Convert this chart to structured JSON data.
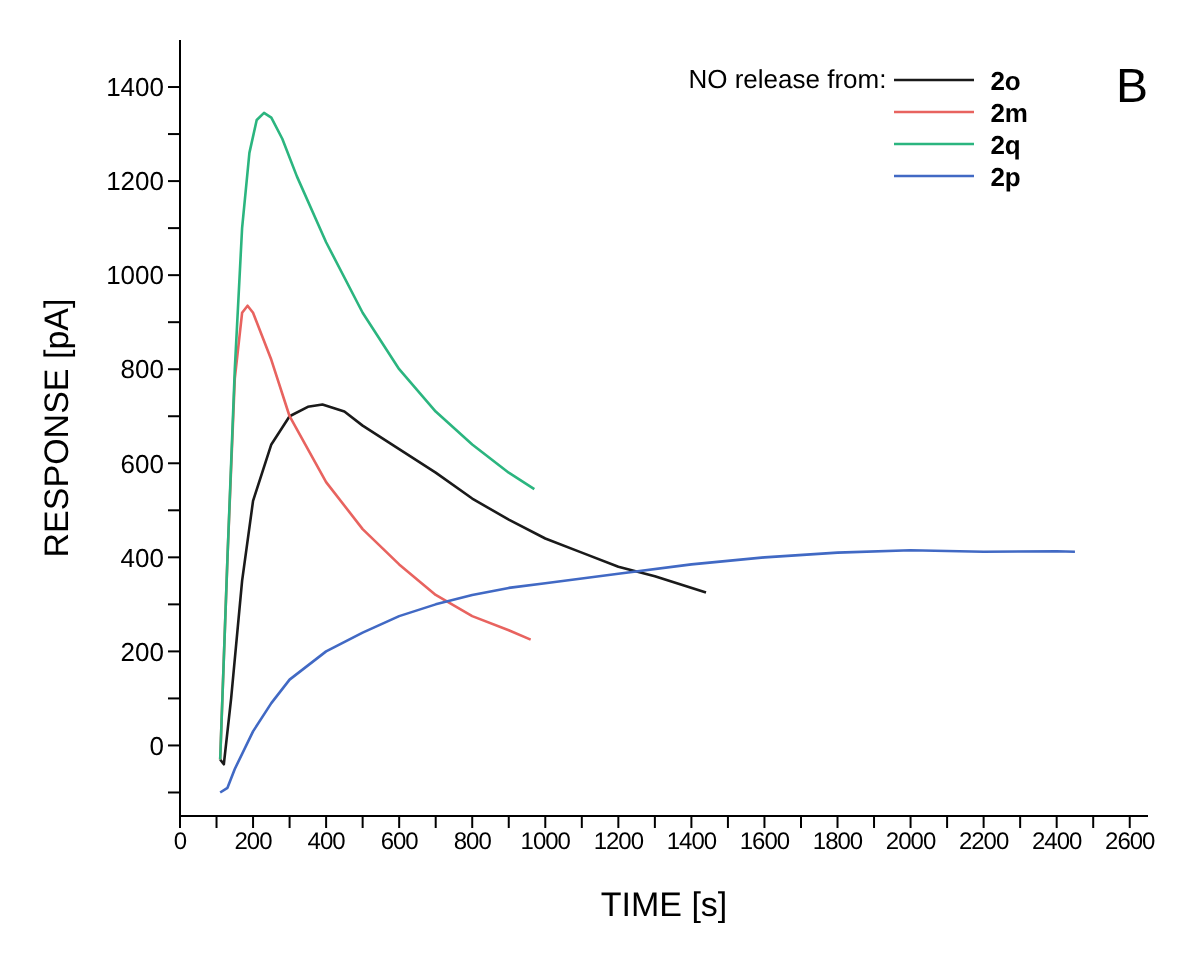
{
  "chart_data": {
    "type": "line",
    "xlabel": "TIME [s]",
    "ylabel": "RESPONSE [pA]",
    "legend_title": "NO release from:",
    "legend": "top right",
    "annotations": [
      "B"
    ],
    "grid": false,
    "marker": "none",
    "line_style": "solid",
    "xlim": [
      0,
      2650
    ],
    "ylim": [
      -150,
      1500
    ],
    "xticks": [
      0,
      {
        "value": 100,
        "label": null
      },
      200,
      {
        "value": 300,
        "label": null
      },
      400,
      {
        "value": 500,
        "label": null
      },
      600,
      {
        "value": 700,
        "label": null
      },
      800,
      {
        "value": 900,
        "label": null
      },
      1000,
      {
        "value": 1100,
        "label": null
      },
      1200,
      {
        "value": 1300,
        "label": null
      },
      1400,
      {
        "value": 1500,
        "label": null
      },
      1600,
      {
        "value": 1700,
        "label": null
      },
      1800,
      {
        "value": 1900,
        "label": null
      },
      2000,
      {
        "value": 2100,
        "label": null
      },
      2200,
      {
        "value": 2300,
        "label": null
      },
      2400,
      {
        "value": 2500,
        "label": null
      },
      2600
    ],
    "yticks": [
      {
        "value": -100,
        "label": null
      },
      0,
      {
        "value": 100,
        "label": null
      },
      200,
      {
        "value": 300,
        "label": null
      },
      400,
      {
        "value": 500,
        "label": null
      },
      600,
      {
        "value": 700,
        "label": null
      },
      800,
      {
        "value": 900,
        "label": null
      },
      1000,
      {
        "value": 1100,
        "label": null
      },
      1200,
      {
        "value": 1300,
        "label": null
      },
      1400
    ],
    "series": [
      {
        "name": "2o",
        "color": "#1a1a1a",
        "x": [
          110,
          120,
          140,
          170,
          200,
          250,
          300,
          350,
          390,
          450,
          500,
          600,
          700,
          800,
          900,
          1000,
          1100,
          1200,
          1300,
          1440
        ],
        "values": [
          -30,
          -40,
          100,
          350,
          520,
          640,
          700,
          720,
          725,
          710,
          680,
          630,
          580,
          525,
          480,
          440,
          410,
          380,
          360,
          325
        ]
      },
      {
        "name": "2m",
        "color": "#e8635f",
        "x": [
          110,
          130,
          150,
          170,
          185,
          200,
          250,
          300,
          400,
          500,
          600,
          700,
          800,
          900,
          960
        ],
        "values": [
          -30,
          400,
          780,
          920,
          935,
          920,
          820,
          700,
          560,
          460,
          385,
          320,
          275,
          245,
          225
        ]
      },
      {
        "name": "2q",
        "color": "#2bb57f",
        "x": [
          110,
          130,
          150,
          170,
          190,
          210,
          230,
          250,
          280,
          320,
          400,
          500,
          600,
          700,
          800,
          900,
          970
        ],
        "values": [
          -30,
          400,
          800,
          1100,
          1260,
          1330,
          1345,
          1335,
          1290,
          1210,
          1070,
          920,
          800,
          710,
          640,
          580,
          545
        ]
      },
      {
        "name": "2p",
        "color": "#4169c4",
        "x": [
          110,
          130,
          150,
          200,
          250,
          300,
          400,
          500,
          600,
          700,
          800,
          900,
          1000,
          1200,
          1400,
          1600,
          1800,
          2000,
          2200,
          2400,
          2450
        ],
        "values": [
          -100,
          -90,
          -50,
          30,
          90,
          140,
          200,
          240,
          275,
          300,
          320,
          335,
          345,
          365,
          385,
          400,
          410,
          415,
          412,
          413,
          412
        ]
      }
    ]
  }
}
